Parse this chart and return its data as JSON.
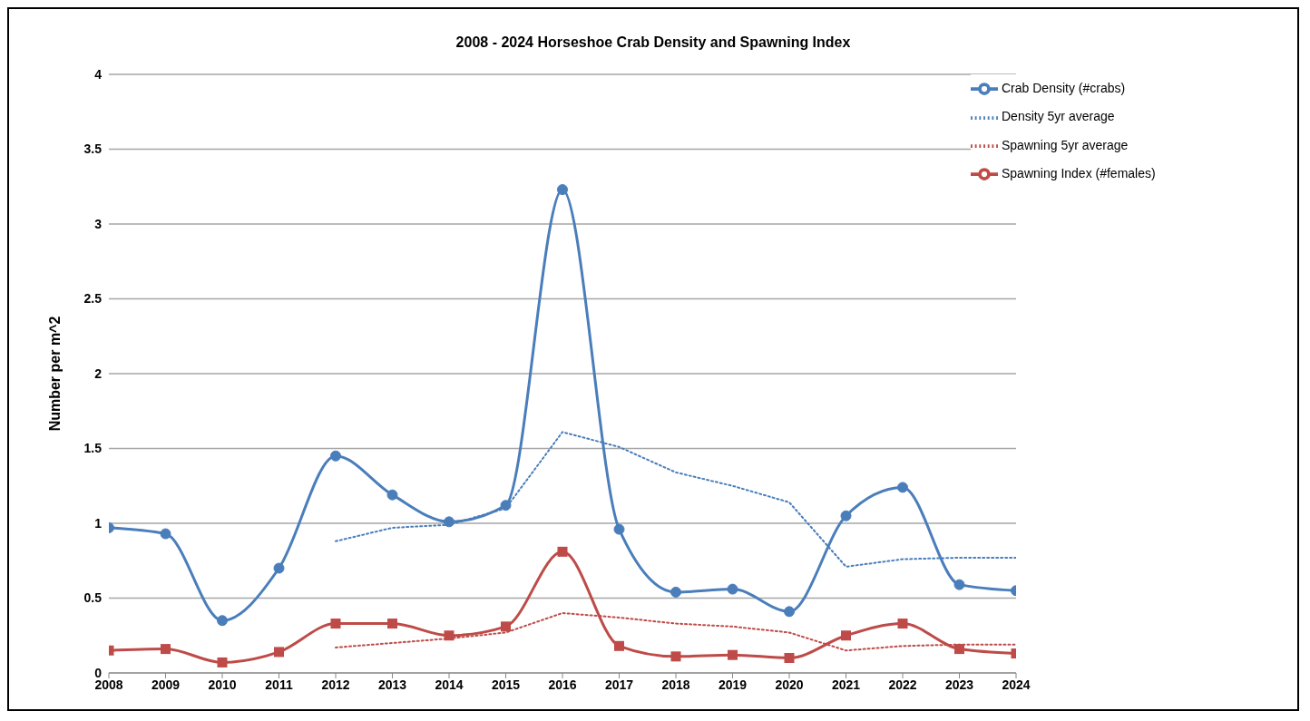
{
  "chart_data": {
    "type": "line",
    "title": "2008 - 2024 Horseshoe Crab Density and Spawning Index",
    "ylabel": "Number per m^2",
    "x": [
      2008,
      2009,
      2010,
      2011,
      2012,
      2013,
      2014,
      2015,
      2016,
      2017,
      2018,
      2019,
      2020,
      2021,
      2022,
      2023,
      2024
    ],
    "xlim": [
      2008,
      2024
    ],
    "xticks": [
      2008,
      2009,
      2010,
      2011,
      2012,
      2013,
      2014,
      2015,
      2016,
      2017,
      2018,
      2019,
      2020,
      2021,
      2022,
      2023,
      2024
    ],
    "ylim": [
      0,
      4
    ],
    "yticks": [
      0,
      0.5,
      1,
      1.5,
      2,
      2.5,
      3,
      3.5,
      4
    ],
    "grid": "y",
    "legend": "top right",
    "series": [
      {
        "name": "Crab Density (#crabs)",
        "color": "#4a7ebb",
        "marker": "circle",
        "line_style": "solid",
        "values": [
          0.97,
          0.93,
          0.35,
          0.7,
          1.45,
          1.19,
          1.01,
          1.12,
          3.23,
          0.96,
          0.54,
          0.56,
          0.41,
          1.05,
          1.24,
          0.59,
          0.55
        ]
      },
      {
        "name": "Density 5yr average",
        "color": "#4a7ebb",
        "marker": "none",
        "line_style": "dotted",
        "x": [
          2012,
          2013,
          2014,
          2015,
          2016,
          2017,
          2018,
          2019,
          2020,
          2021,
          2022,
          2023,
          2024
        ],
        "values": [
          0.88,
          0.97,
          0.99,
          1.1,
          1.61,
          1.51,
          1.34,
          1.25,
          1.14,
          0.71,
          0.76,
          0.77,
          0.77
        ]
      },
      {
        "name": "Spawning Index (#females)",
        "color": "#be4b48",
        "marker": "square",
        "line_style": "solid",
        "values": [
          0.15,
          0.16,
          0.07,
          0.14,
          0.33,
          0.33,
          0.25,
          0.31,
          0.81,
          0.18,
          0.11,
          0.12,
          0.1,
          0.25,
          0.33,
          0.16,
          0.13
        ]
      },
      {
        "name": "Spawning 5yr average",
        "color": "#be4b48",
        "marker": "none",
        "line_style": "dotted",
        "x": [
          2012,
          2013,
          2014,
          2015,
          2016,
          2017,
          2018,
          2019,
          2020,
          2021,
          2022,
          2023,
          2024
        ],
        "values": [
          0.17,
          0.2,
          0.23,
          0.27,
          0.4,
          0.37,
          0.33,
          0.31,
          0.27,
          0.15,
          0.18,
          0.19,
          0.19
        ]
      }
    ]
  }
}
